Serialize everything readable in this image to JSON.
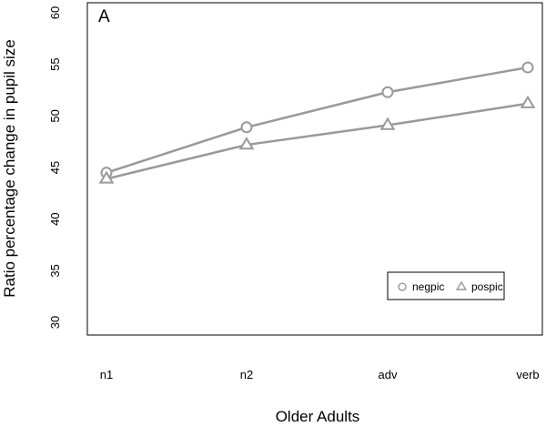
{
  "chart_data": {
    "type": "line",
    "panel_label": "A",
    "xlabel": "Older Adults",
    "ylabel": "Ratio percentage change in pupil size",
    "categories": [
      "n1",
      "n2",
      "adv",
      "verb"
    ],
    "ylim": [
      30,
      60
    ],
    "yticks": [
      "30",
      "35",
      "40",
      "45",
      "50",
      "55",
      "60"
    ],
    "grid": false,
    "legend_position": "bottom-right",
    "series": [
      {
        "name": "negpic",
        "marker": "circle",
        "color": "#999999",
        "values": [
          44.5,
          48.9,
          52.3,
          54.7
        ]
      },
      {
        "name": "pospic",
        "marker": "triangle",
        "color": "#999999",
        "values": [
          43.9,
          47.2,
          49.1,
          51.2
        ]
      }
    ]
  }
}
